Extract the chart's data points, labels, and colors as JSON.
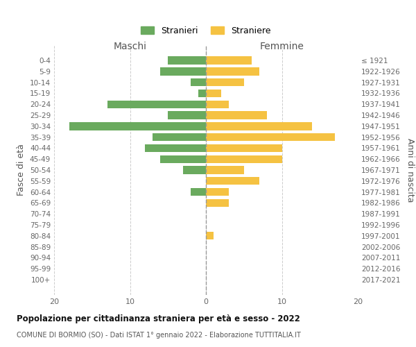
{
  "age_groups": [
    "0-4",
    "5-9",
    "10-14",
    "15-19",
    "20-24",
    "25-29",
    "30-34",
    "35-39",
    "40-44",
    "45-49",
    "50-54",
    "55-59",
    "60-64",
    "65-69",
    "70-74",
    "75-79",
    "80-84",
    "85-89",
    "90-94",
    "95-99",
    "100+"
  ],
  "birth_years": [
    "2017-2021",
    "2012-2016",
    "2007-2011",
    "2002-2006",
    "1997-2001",
    "1992-1996",
    "1987-1991",
    "1982-1986",
    "1977-1981",
    "1972-1976",
    "1967-1971",
    "1962-1966",
    "1957-1961",
    "1952-1956",
    "1947-1951",
    "1942-1946",
    "1937-1941",
    "1932-1936",
    "1927-1931",
    "1922-1926",
    "≤ 1921"
  ],
  "maschi": [
    5,
    6,
    2,
    1,
    13,
    5,
    18,
    7,
    8,
    6,
    3,
    0,
    2,
    0,
    0,
    0,
    0,
    0,
    0,
    0,
    0
  ],
  "femmine": [
    6,
    7,
    5,
    2,
    3,
    8,
    14,
    17,
    10,
    10,
    5,
    7,
    3,
    3,
    0,
    0,
    1,
    0,
    0,
    0,
    0
  ],
  "male_color": "#6aaa5e",
  "female_color": "#f5c242",
  "title": "Popolazione per cittadinanza straniera per età e sesso - 2022",
  "subtitle": "COMUNE DI BORMIO (SO) - Dati ISTAT 1° gennaio 2022 - Elaborazione TUTTITALIA.IT",
  "xlabel_left": "Maschi",
  "xlabel_right": "Femmine",
  "ylabel_left": "Fasce di età",
  "ylabel_right": "Anni di nascita",
  "legend_male": "Stranieri",
  "legend_female": "Straniere",
  "xlim": 20,
  "background_color": "#ffffff",
  "grid_color": "#cccccc"
}
